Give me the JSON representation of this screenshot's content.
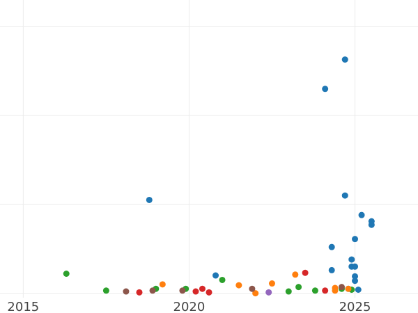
{
  "chart_data": {
    "type": "scatter",
    "title": "",
    "xlabel": "",
    "ylabel": "",
    "x_ticks": [
      "2015",
      "2020",
      "2025"
    ],
    "x_tick_values": [
      2015,
      2020,
      2025
    ],
    "y_gridlines": [
      0,
      1,
      2,
      3
    ],
    "xlim": [
      2014.3,
      2026.9
    ],
    "ylim": [
      -0.05,
      3.3
    ],
    "grid": true,
    "legend": "none",
    "series": [
      {
        "color": "#1f77b4",
        "points": [
          [
            2024.7,
            2.63
          ],
          [
            2024.1,
            2.3
          ],
          [
            2018.8,
            1.05
          ],
          [
            2024.7,
            1.1
          ],
          [
            2025.2,
            0.88
          ],
          [
            2025.5,
            0.81
          ],
          [
            2025.5,
            0.77
          ],
          [
            2025.0,
            0.61
          ],
          [
            2024.3,
            0.52
          ],
          [
            2024.9,
            0.38
          ],
          [
            2024.9,
            0.3
          ],
          [
            2025.0,
            0.3
          ],
          [
            2024.3,
            0.26
          ],
          [
            2020.8,
            0.2
          ],
          [
            2025.0,
            0.19
          ],
          [
            2025.0,
            0.14
          ],
          [
            2025.1,
            0.04
          ],
          [
            2024.8,
            0.05
          ]
        ]
      },
      {
        "color": "#2ca02c",
        "points": [
          [
            2016.3,
            0.22
          ],
          [
            2017.5,
            0.03
          ],
          [
            2019.0,
            0.05
          ],
          [
            2019.9,
            0.05
          ],
          [
            2021.0,
            0.15
          ],
          [
            2023.0,
            0.02
          ],
          [
            2023.3,
            0.07
          ],
          [
            2023.8,
            0.03
          ],
          [
            2024.9,
            0.04
          ],
          [
            2024.6,
            0.05
          ]
        ]
      },
      {
        "color": "#ff7f0e",
        "points": [
          [
            2019.2,
            0.1
          ],
          [
            2021.5,
            0.09
          ],
          [
            2022.0,
            0.0
          ],
          [
            2022.5,
            0.11
          ],
          [
            2023.2,
            0.21
          ],
          [
            2024.4,
            0.06
          ],
          [
            2024.4,
            0.03
          ],
          [
            2024.8,
            0.05
          ]
        ]
      },
      {
        "color": "#d62728",
        "points": [
          [
            2018.5,
            0.01
          ],
          [
            2020.2,
            0.02
          ],
          [
            2020.4,
            0.05
          ],
          [
            2020.6,
            0.01
          ],
          [
            2023.5,
            0.23
          ],
          [
            2024.1,
            0.03
          ]
        ]
      },
      {
        "color": "#8c564b",
        "points": [
          [
            2018.1,
            0.02
          ],
          [
            2018.9,
            0.03
          ],
          [
            2019.8,
            0.03
          ],
          [
            2021.9,
            0.05
          ],
          [
            2024.6,
            0.07
          ]
        ]
      },
      {
        "color": "#9467bd",
        "points": [
          [
            2022.4,
            0.01
          ]
        ]
      }
    ]
  }
}
